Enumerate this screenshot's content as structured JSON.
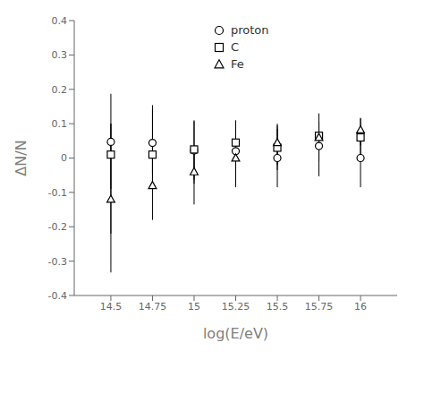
{
  "chart_data": {
    "type": "scatter",
    "x": [
      14.5,
      14.75,
      15.0,
      15.25,
      15.5,
      15.75,
      16.0
    ],
    "series": [
      {
        "name": "proton",
        "color": "black",
        "marker": "circle",
        "values": [
          0.047,
          0.044,
          0.022,
          0.02,
          0.0,
          0.035,
          0.0
        ],
        "yerr_lo": [
          0.38,
          0.09,
          0.085,
          0.085,
          0.085,
          0.088,
          0.085
        ],
        "yerr_hi": [
          0.14,
          0.11,
          0.085,
          0.085,
          0.085,
          0.07,
          0.085
        ]
      },
      {
        "name": "C",
        "color": "black",
        "marker": "square",
        "values": [
          0.01,
          0.01,
          0.025,
          0.045,
          0.03,
          0.065,
          0.06
        ],
        "yerr_lo": [
          0.1,
          0.09,
          0.1,
          0.075,
          0.065,
          0.075,
          0.055
        ],
        "yerr_hi": [
          0.09,
          0.13,
          0.085,
          0.065,
          0.065,
          0.065,
          0.055
        ]
      },
      {
        "name": "Fe",
        "color": "black",
        "marker": "triangle",
        "values": [
          -0.12,
          -0.08,
          -0.04,
          0.0,
          0.045,
          0.06,
          0.082
        ],
        "yerr_lo": [
          0.1,
          0.1,
          0.095,
          0.085,
          0.065,
          0.065,
          0.045
        ],
        "yerr_hi": [
          0.22,
          0.1,
          0.075,
          0.075,
          0.055,
          0.045,
          0.035
        ]
      }
    ],
    "xlabel": "log(E/eV)",
    "ylabel": "ΔN/N",
    "xlim": [
      14.28,
      16.22
    ],
    "ylim": [
      -0.4,
      0.4
    ],
    "xticks": [
      14.5,
      14.75,
      15.0,
      15.25,
      15.5,
      15.75,
      16.0
    ],
    "yticks": [
      -0.4,
      -0.3,
      -0.2,
      -0.1,
      0.0,
      0.1,
      0.2,
      0.3,
      0.4
    ],
    "grid": false,
    "legend": "upper center"
  }
}
